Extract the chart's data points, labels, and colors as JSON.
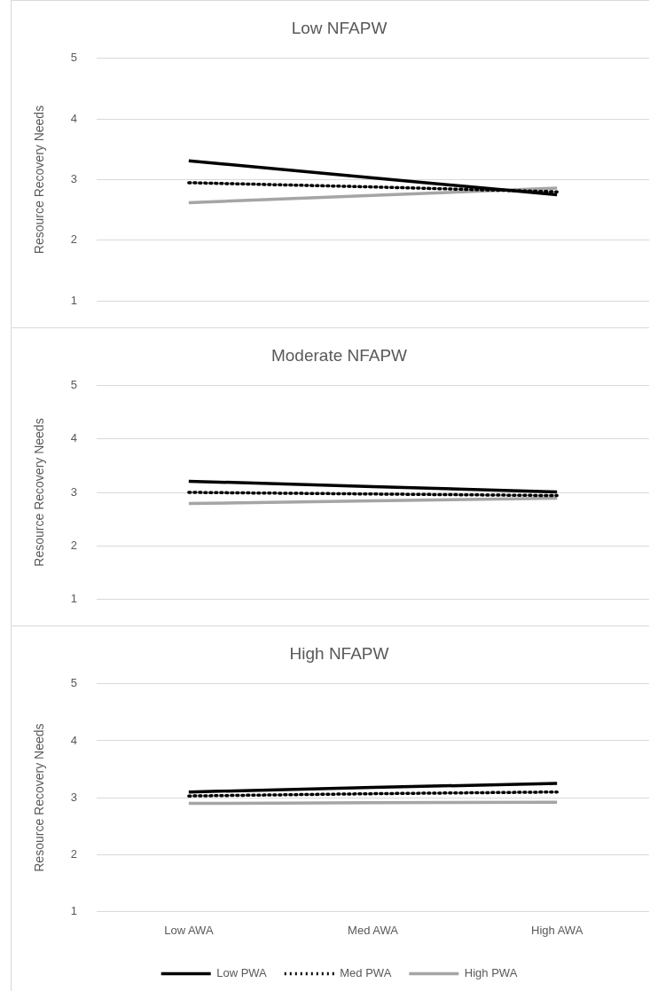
{
  "chart_data": [
    {
      "type": "line",
      "title": "Low NFAPW",
      "ylabel": "Resource Recovery Needs",
      "categories": [
        null,
        null,
        null
      ],
      "ylim": [
        1,
        5
      ],
      "yticks": [
        1,
        2,
        3,
        4,
        5
      ],
      "grid": "y",
      "legend": false,
      "tick_labels": "y",
      "marker": "none",
      "series": [
        {
          "color": "#000000",
          "line_style": "solid",
          "values": [
            3.31,
            3.03,
            2.75
          ]
        },
        {
          "color": "#000000",
          "line_style": "dotted",
          "values": [
            2.95,
            2.88,
            2.8
          ]
        },
        {
          "color": "#a5a5a5",
          "line_style": "solid",
          "values": [
            2.62,
            2.74,
            2.86
          ]
        }
      ]
    },
    {
      "type": "line",
      "title": "Moderate NFAPW",
      "ylabel": "Resource Recovery Needs",
      "categories": [
        null,
        null,
        null
      ],
      "ylim": [
        1,
        5
      ],
      "yticks": [
        1,
        2,
        3,
        4,
        5
      ],
      "grid": "y",
      "legend": false,
      "tick_labels": "y",
      "marker": "none",
      "series": [
        {
          "color": "#000000",
          "line_style": "solid",
          "values": [
            3.21,
            3.11,
            3.01
          ]
        },
        {
          "color": "#000000",
          "line_style": "dotted",
          "values": [
            3.0,
            2.97,
            2.94
          ]
        },
        {
          "color": "#a5a5a5",
          "line_style": "solid",
          "values": [
            2.79,
            2.84,
            2.89
          ]
        }
      ]
    },
    {
      "type": "line",
      "title": "High NFAPW",
      "ylabel": "Resource Recovery Needs",
      "categories": [
        "Low AWA",
        "Med AWA",
        "High AWA"
      ],
      "ylim": [
        1,
        5
      ],
      "yticks": [
        1,
        2,
        3,
        4,
        5
      ],
      "grid": "y",
      "legend": "bottom",
      "marker": "none",
      "series": [
        {
          "name": "Low PWA",
          "color": "#000000",
          "line_style": "solid",
          "values": [
            3.1,
            3.18,
            3.25
          ]
        },
        {
          "name": "Med PWA",
          "color": "#000000",
          "line_style": "dotted",
          "values": [
            3.03,
            3.07,
            3.1
          ]
        },
        {
          "name": "High PWA",
          "color": "#a5a5a5",
          "line_style": "solid",
          "values": [
            2.9,
            2.91,
            2.92
          ]
        }
      ]
    }
  ]
}
